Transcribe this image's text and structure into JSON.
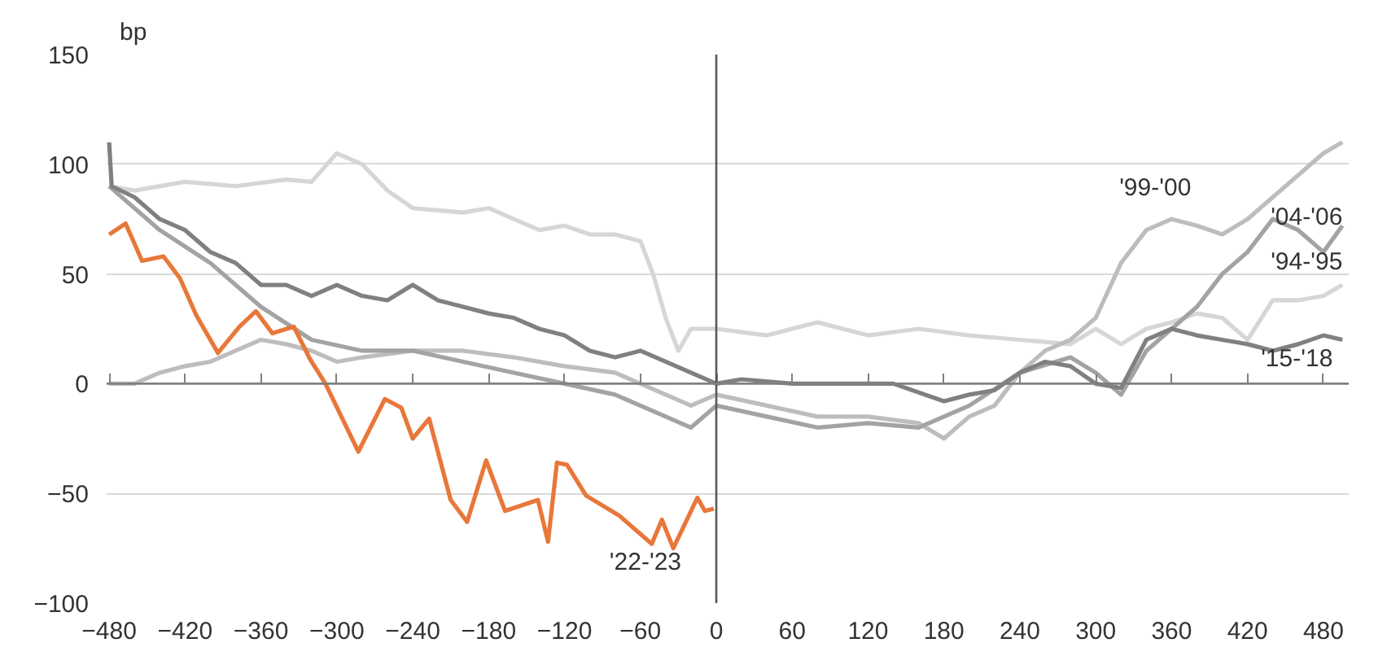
{
  "chart_data": {
    "type": "line",
    "ylabel": "bp",
    "xlim": [
      -482,
      500
    ],
    "ylim": [
      -100,
      150
    ],
    "xticks": [
      -480,
      -420,
      -360,
      -300,
      -240,
      -180,
      -120,
      -60,
      0,
      60,
      120,
      180,
      240,
      300,
      360,
      420,
      480
    ],
    "yticks": [
      -100,
      -50,
      0,
      50,
      100,
      150
    ],
    "grid": "y",
    "marker": "none",
    "line_style": "solid",
    "ref_lines": [
      {
        "axis": "x",
        "value": 0,
        "color": "#595959"
      },
      {
        "axis": "y",
        "value": 0,
        "color": "#808080"
      }
    ],
    "series": [
      {
        "name": "'94-'95",
        "color": "#d6d6d6",
        "x": [
          -480,
          -460,
          -420,
          -380,
          -340,
          -320,
          -300,
          -280,
          -260,
          -240,
          -200,
          -180,
          -160,
          -140,
          -120,
          -100,
          -80,
          -60,
          -50,
          -40,
          -30,
          -20,
          0,
          40,
          80,
          120,
          160,
          200,
          240,
          280,
          300,
          320,
          340,
          360,
          380,
          400,
          420,
          440,
          460,
          480,
          495
        ],
        "values": [
          90,
          88,
          92,
          90,
          93,
          92,
          105,
          100,
          88,
          80,
          78,
          80,
          75,
          70,
          72,
          68,
          68,
          65,
          50,
          30,
          15,
          25,
          25,
          22,
          28,
          22,
          25,
          22,
          20,
          18,
          25,
          18,
          25,
          28,
          32,
          30,
          20,
          38,
          38,
          40,
          45
        ]
      },
      {
        "name": "'99-'00",
        "color": "#bdbdbd",
        "x": [
          -480,
          -460,
          -440,
          -420,
          -400,
          -380,
          -360,
          -340,
          -320,
          -300,
          -280,
          -240,
          -200,
          -160,
          -120,
          -80,
          -60,
          -40,
          -20,
          0,
          40,
          80,
          120,
          160,
          180,
          200,
          220,
          240,
          260,
          280,
          300,
          320,
          340,
          360,
          380,
          400,
          420,
          440,
          460,
          480,
          495
        ],
        "values": [
          0,
          0,
          5,
          8,
          10,
          15,
          20,
          18,
          15,
          10,
          12,
          15,
          15,
          12,
          8,
          5,
          0,
          -5,
          -10,
          -5,
          -10,
          -15,
          -15,
          -18,
          -25,
          -15,
          -10,
          5,
          15,
          20,
          30,
          55,
          70,
          75,
          72,
          68,
          75,
          85,
          95,
          105,
          110
        ]
      },
      {
        "name": "'04-'06",
        "color": "#a3a3a3",
        "x": [
          -480,
          -440,
          -400,
          -360,
          -320,
          -280,
          -240,
          -200,
          -160,
          -120,
          -80,
          -40,
          -20,
          0,
          40,
          80,
          120,
          160,
          200,
          240,
          280,
          300,
          320,
          340,
          360,
          380,
          400,
          420,
          440,
          460,
          480,
          495
        ],
        "values": [
          90,
          70,
          55,
          35,
          20,
          15,
          15,
          10,
          5,
          0,
          -5,
          -15,
          -20,
          -10,
          -15,
          -20,
          -18,
          -20,
          -10,
          5,
          12,
          5,
          -5,
          15,
          25,
          35,
          50,
          60,
          75,
          70,
          60,
          72
        ]
      },
      {
        "name": "'15-'18",
        "color": "#808080",
        "x": [
          -480,
          -478,
          -460,
          -440,
          -420,
          -400,
          -380,
          -360,
          -340,
          -320,
          -300,
          -280,
          -260,
          -240,
          -220,
          -200,
          -180,
          -160,
          -140,
          -120,
          -100,
          -80,
          -60,
          -40,
          -20,
          0,
          20,
          60,
          100,
          140,
          180,
          200,
          220,
          240,
          260,
          280,
          300,
          320,
          340,
          360,
          380,
          400,
          420,
          440,
          460,
          480,
          495
        ],
        "values": [
          110,
          90,
          85,
          75,
          70,
          60,
          55,
          45,
          45,
          40,
          45,
          40,
          38,
          45,
          38,
          35,
          32,
          30,
          25,
          22,
          15,
          12,
          15,
          10,
          5,
          0,
          2,
          0,
          0,
          0,
          -8,
          -5,
          -3,
          5,
          10,
          8,
          0,
          -2,
          20,
          25,
          22,
          20,
          18,
          15,
          18,
          22,
          20
        ]
      },
      {
        "name": "'22-'23",
        "color": "#e8773a",
        "x": [
          -480,
          -467,
          -454,
          -437,
          -424,
          -411,
          -394,
          -377,
          -364,
          -351,
          -334,
          -321,
          -309,
          -283,
          -262,
          -249,
          -240,
          -227,
          -210,
          -197,
          -182,
          -167,
          -141,
          -133,
          -126,
          -118,
          -103,
          -77,
          -51,
          -43,
          -34,
          -15,
          -9,
          -2
        ],
        "values": [
          68,
          73,
          56,
          58,
          48,
          31,
          14,
          26,
          33,
          23,
          26,
          11,
          0,
          -31,
          -7,
          -11,
          -25,
          -16,
          -53,
          -63,
          -35,
          -58,
          -53,
          -72,
          -36,
          -37,
          -51,
          -60,
          -73,
          -62,
          -75,
          -52,
          -58,
          -57
        ]
      }
    ]
  }
}
